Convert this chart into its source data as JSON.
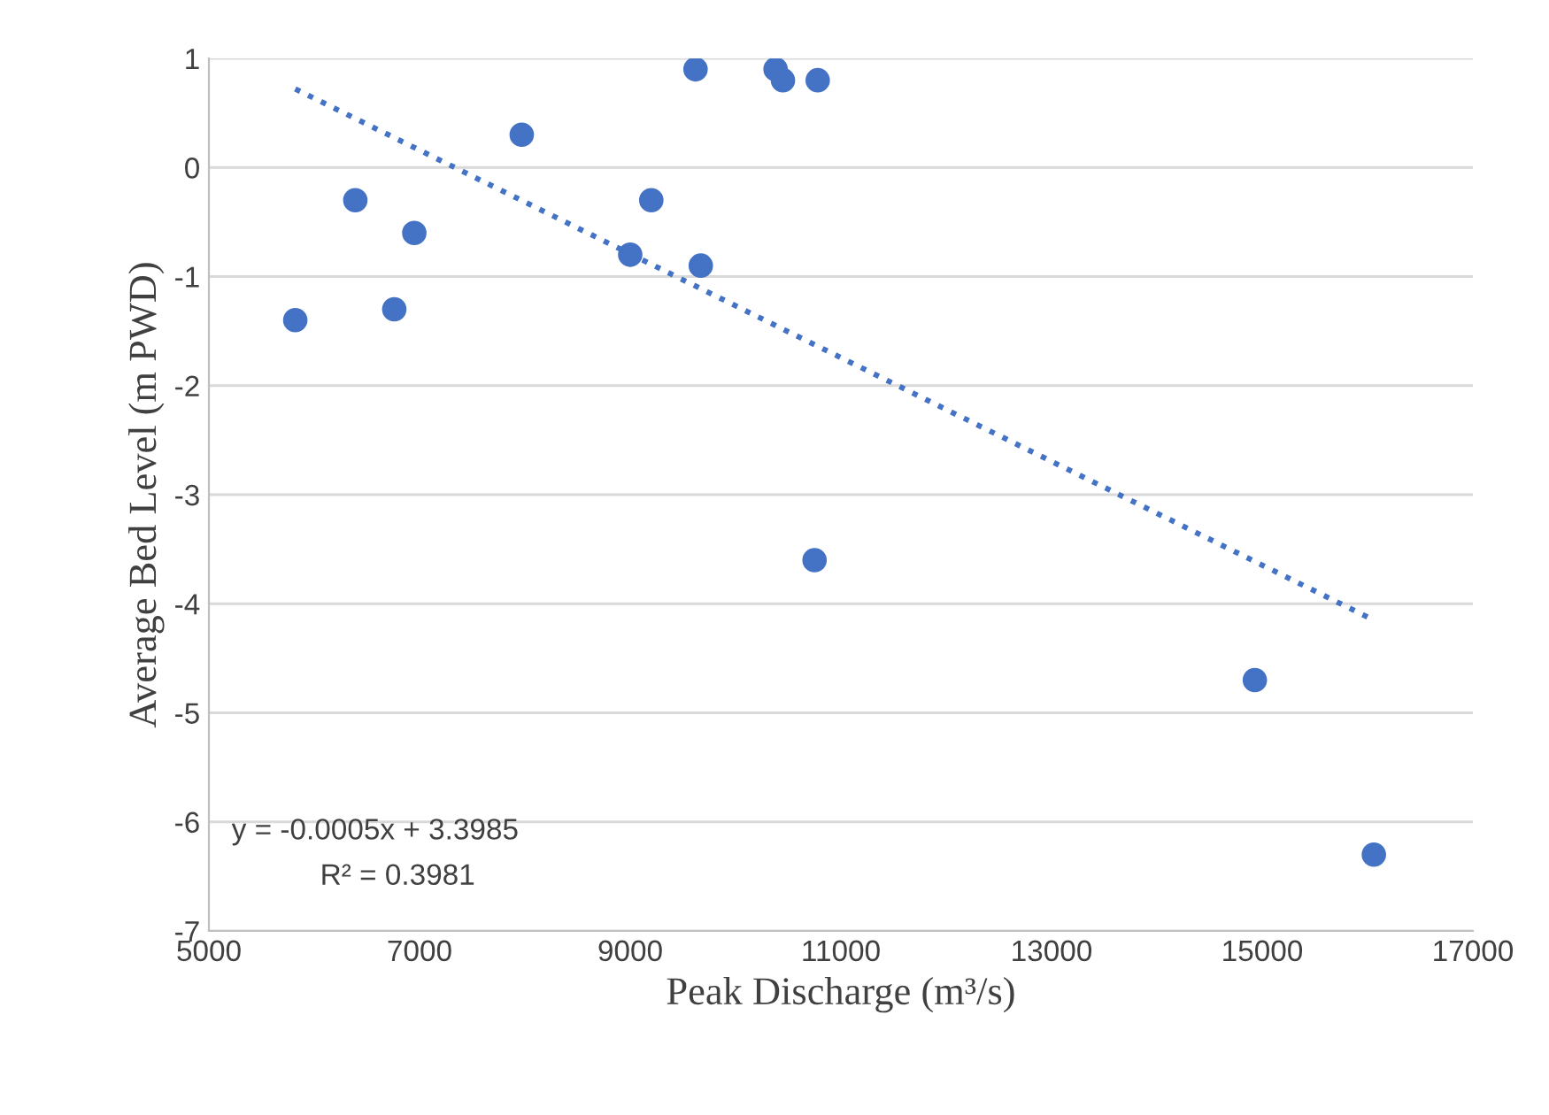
{
  "chart_data": {
    "type": "scatter",
    "xlabel": "Peak Discharge (m³/s)",
    "ylabel": "Average Bed Level (m PWD)",
    "series": [
      {
        "color": "#4472c4",
        "marker": "circle",
        "x": [
          5820,
          6390,
          6950,
          6760,
          7970,
          9000,
          9200,
          9620,
          9670,
          10380,
          10450,
          10780,
          10750,
          14930,
          16060
        ],
        "values": [
          -1.4,
          -0.3,
          -0.6,
          -1.3,
          0.3,
          -0.8,
          -0.3,
          0.9,
          -0.9,
          0.9,
          0.8,
          0.8,
          -3.6,
          -4.7,
          -6.3
        ]
      },
      {
        "type": "line",
        "color": "#4472c4",
        "line_style": "dotted",
        "marker": "none",
        "x": [
          5820,
          16060
        ],
        "values": [
          0.72,
          -4.15
        ]
      }
    ],
    "annotations": [
      "y = -0.0005x + 3.3985",
      "R² = 0.3981"
    ],
    "xlim": [
      5000,
      17000
    ],
    "xticks": [
      5000,
      7000,
      9000,
      11000,
      13000,
      15000,
      17000
    ],
    "ylim": [
      -7,
      1
    ],
    "yticks": [
      -7,
      -6,
      -5,
      -4,
      -3,
      -2,
      -1,
      0,
      1
    ],
    "grid": "y",
    "legend": false
  }
}
